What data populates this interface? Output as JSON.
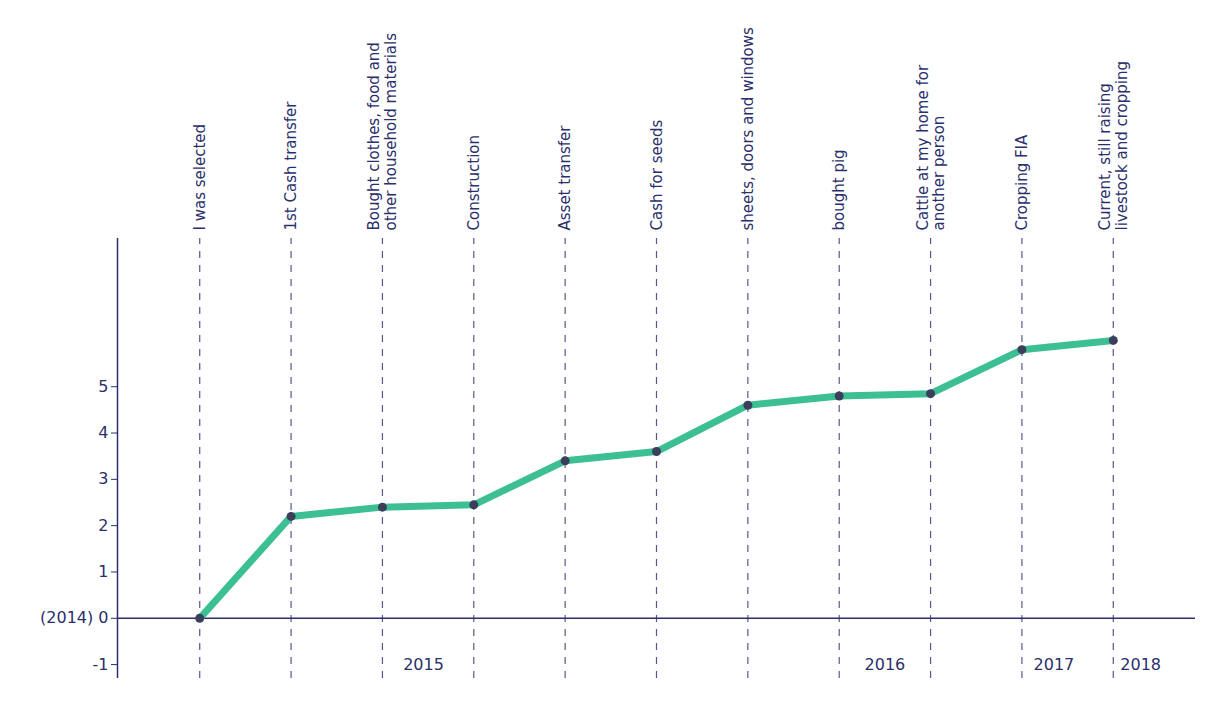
{
  "chart_data": {
    "type": "line",
    "categories": [
      "I was selected",
      "1st Cash transfer",
      "Bought clothes, food and other household materials",
      "Construction",
      "Asset transfer",
      "Cash for seeds",
      "sheets, doors and windows",
      "bought pig",
      "Cattle at my home for another person",
      "Cropping FIA",
      "Current, still raising livestock and cropping"
    ],
    "values": [
      0,
      2.2,
      2.4,
      2.45,
      3.4,
      3.6,
      4.6,
      4.8,
      4.85,
      5.8,
      6.0
    ],
    "color": "#3dbf94",
    "marker": "circle",
    "ylim": [
      -1.3,
      8.2
    ],
    "yticks": [
      -1,
      {
        "value": 0,
        "label": "(2014) 0"
      },
      1,
      2,
      3,
      4,
      5
    ],
    "annotations": [
      {
        "text": "2015",
        "x": 2.45,
        "y": -1
      },
      {
        "text": "2016",
        "x": 7.5,
        "y": -1
      },
      {
        "text": "2017",
        "x": 9.35,
        "y": -1
      },
      {
        "text": "2018",
        "x": 10.3,
        "y": -1
      }
    ],
    "tick_labels": "y",
    "grid": false
  }
}
